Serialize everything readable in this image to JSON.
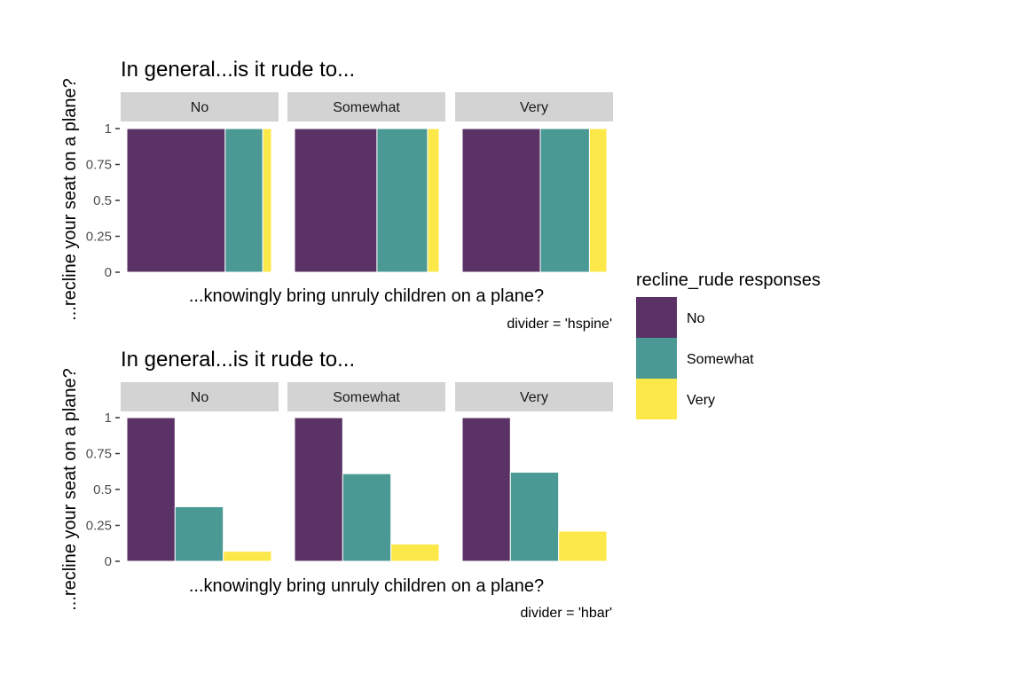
{
  "chart_data": [
    {
      "type": "bar",
      "title": "In general...is it rude to...",
      "xlabel": "...knowingly bring unruly children on a plane?",
      "ylabel": "...recline your seat on a plane?",
      "caption": "divider = 'hspine'",
      "ylim": [
        0,
        1
      ],
      "yticks": [
        {
          "value": 0,
          "label": "0"
        },
        {
          "value": 0.25,
          "label": "0.25"
        },
        {
          "value": 0.5,
          "label": "0.5"
        },
        {
          "value": 0.75,
          "label": "0.75"
        },
        {
          "value": 1,
          "label": "1"
        }
      ],
      "facets": [
        {
          "label": "No",
          "widths": [
            0.68,
            0.26,
            0.06
          ]
        },
        {
          "label": "Somewhat",
          "widths": [
            0.57,
            0.35,
            0.08
          ]
        },
        {
          "label": "Very",
          "widths": [
            0.54,
            0.34,
            0.12
          ]
        }
      ]
    },
    {
      "type": "bar",
      "title": "In general...is it rude to...",
      "xlabel": "...knowingly bring unruly children on a plane?",
      "ylabel": "...recline your seat on a plane?",
      "caption": "divider = 'hbar'",
      "ylim": [
        0,
        1
      ],
      "yticks": [
        {
          "value": 0,
          "label": "0"
        },
        {
          "value": 0.25,
          "label": "0.25"
        },
        {
          "value": 0.5,
          "label": "0.5"
        },
        {
          "value": 0.75,
          "label": "0.75"
        },
        {
          "value": 1,
          "label": "1"
        }
      ],
      "facets": [
        {
          "label": "No",
          "values": [
            1.0,
            0.38,
            0.07
          ]
        },
        {
          "label": "Somewhat",
          "values": [
            1.0,
            0.61,
            0.12
          ]
        },
        {
          "label": "Very",
          "values": [
            1.0,
            0.62,
            0.21
          ]
        }
      ]
    }
  ],
  "legend": {
    "title": "recline_rude responses",
    "items": [
      {
        "label": "No",
        "color": "#5B3266"
      },
      {
        "label": "Somewhat",
        "color": "#4A9994"
      },
      {
        "label": "Very",
        "color": "#FDE84A"
      }
    ]
  },
  "colors": {
    "strip_background": "#d3d3d3",
    "axis_text": "#4d4d4d"
  }
}
